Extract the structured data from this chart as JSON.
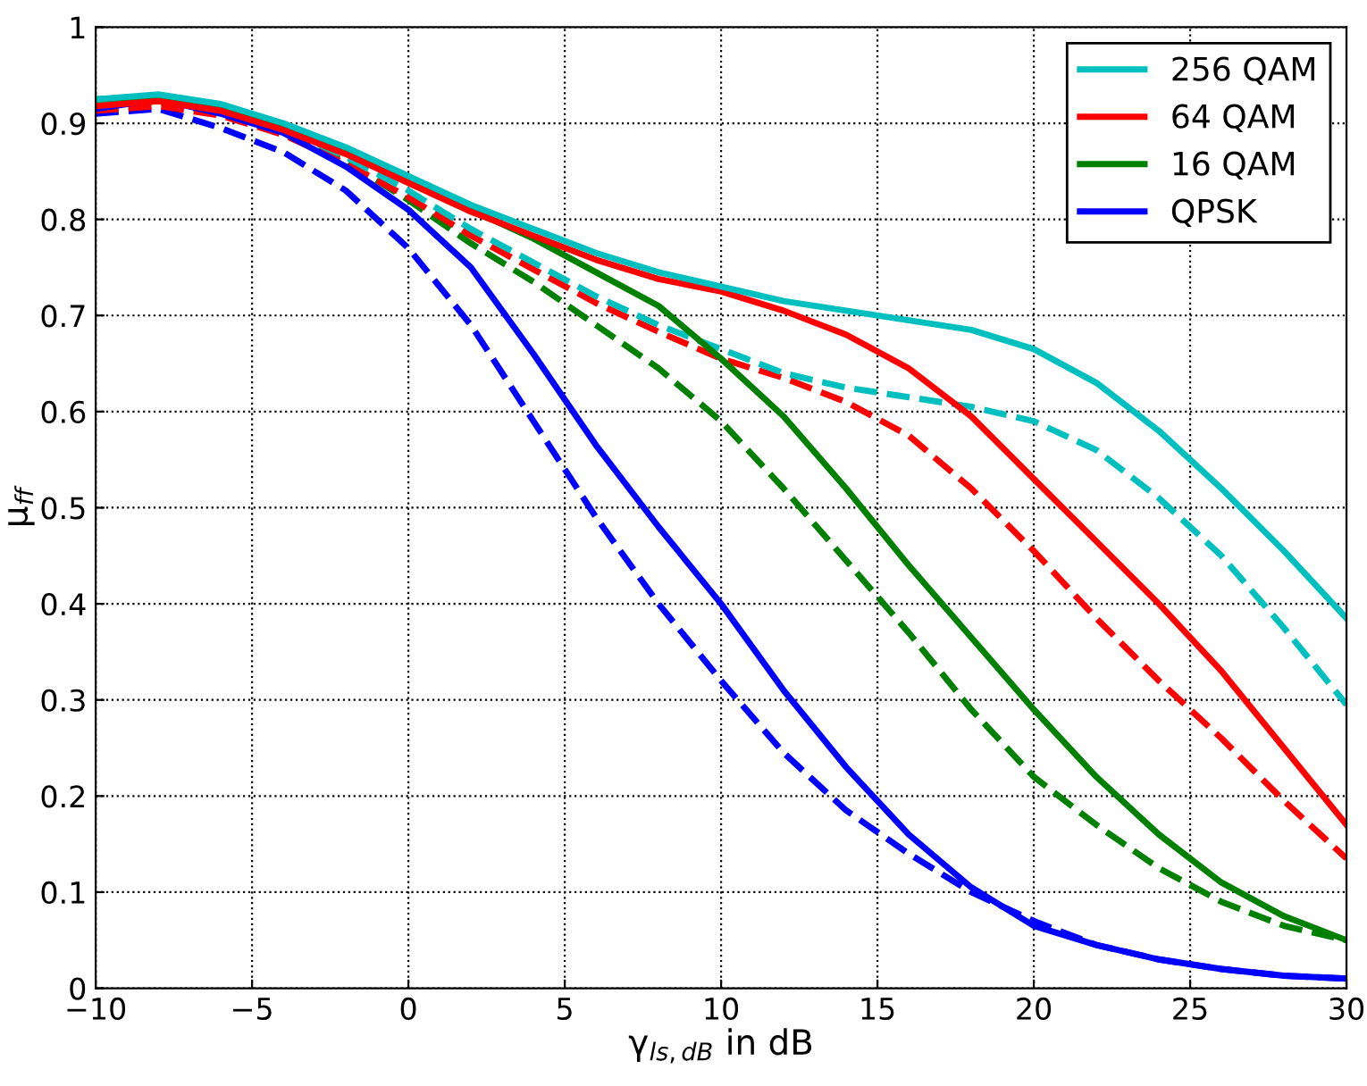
{
  "chart_data": {
    "type": "line",
    "xlabel": "γ$_{ls,dB}$ in dB",
    "ylabel": "μ$_{ff}$",
    "x": [
      -10,
      -8,
      -6,
      -4,
      -2,
      0,
      2,
      4,
      6,
      8,
      10,
      12,
      14,
      16,
      18,
      20,
      22,
      24,
      26,
      28,
      30
    ],
    "xlim": [
      -10,
      30
    ],
    "xticks": [
      {
        "value": -10,
        "label": "−10"
      },
      {
        "value": -5,
        "label": "−5"
      },
      0,
      5,
      10,
      15,
      20,
      25,
      30
    ],
    "ylim": [
      0,
      1
    ],
    "yticks": [
      0,
      0.1,
      0.2,
      0.3,
      0.4,
      0.5,
      0.6,
      0.7,
      0.8,
      0.9,
      1
    ],
    "grid": true,
    "legend": "top right",
    "marker": "none",
    "series": [
      {
        "name": "256 QAM",
        "color": "#00bfbf",
        "line_style": "solid",
        "values": [
          0.925,
          0.93,
          0.92,
          0.9,
          0.875,
          0.845,
          0.815,
          0.79,
          0.765,
          0.745,
          0.73,
          0.715,
          0.705,
          0.695,
          0.685,
          0.665,
          0.63,
          0.58,
          0.52,
          0.455,
          0.385
        ]
      },
      {
        "name": "64 QAM",
        "color": "#ff0000",
        "line_style": "solid",
        "values": [
          0.918,
          0.923,
          0.913,
          0.893,
          0.868,
          0.838,
          0.808,
          0.783,
          0.758,
          0.738,
          0.725,
          0.705,
          0.68,
          0.645,
          0.595,
          0.53,
          0.465,
          0.4,
          0.33,
          0.25,
          0.17
        ]
      },
      {
        "name": "16 QAM",
        "color": "#008000",
        "line_style": "solid",
        "values": [
          0.925,
          0.928,
          0.915,
          0.895,
          0.87,
          0.84,
          0.81,
          0.78,
          0.745,
          0.71,
          0.655,
          0.595,
          0.52,
          0.44,
          0.365,
          0.29,
          0.22,
          0.16,
          0.11,
          0.075,
          0.05
        ]
      },
      {
        "name": "QPSK",
        "color": "#0000ff",
        "line_style": "solid",
        "values": [
          0.915,
          0.925,
          0.91,
          0.89,
          0.855,
          0.81,
          0.75,
          0.66,
          0.565,
          0.48,
          0.4,
          0.31,
          0.23,
          0.16,
          0.105,
          0.065,
          0.045,
          0.03,
          0.02,
          0.013,
          0.01
        ]
      },
      {
        "color": "#00bfbf",
        "line_style": "dashed",
        "values": [
          0.92,
          0.925,
          0.915,
          0.895,
          0.865,
          0.83,
          0.79,
          0.755,
          0.72,
          0.69,
          0.665,
          0.64,
          0.625,
          0.615,
          0.605,
          0.59,
          0.56,
          0.51,
          0.45,
          0.375,
          0.295
        ]
      },
      {
        "color": "#ff0000",
        "line_style": "dashed",
        "values": [
          0.913,
          0.918,
          0.908,
          0.888,
          0.858,
          0.823,
          0.783,
          0.748,
          0.713,
          0.683,
          0.655,
          0.635,
          0.61,
          0.575,
          0.52,
          0.455,
          0.385,
          0.32,
          0.26,
          0.195,
          0.135
        ]
      },
      {
        "color": "#008000",
        "line_style": "dashed",
        "values": [
          0.92,
          0.922,
          0.91,
          0.89,
          0.86,
          0.82,
          0.775,
          0.735,
          0.69,
          0.645,
          0.59,
          0.52,
          0.445,
          0.37,
          0.29,
          0.22,
          0.17,
          0.125,
          0.09,
          0.065,
          0.05
        ]
      },
      {
        "color": "#0000ff",
        "line_style": "dashed",
        "values": [
          0.91,
          0.915,
          0.895,
          0.87,
          0.83,
          0.77,
          0.69,
          0.59,
          0.49,
          0.4,
          0.32,
          0.245,
          0.185,
          0.14,
          0.1,
          0.07,
          0.045,
          0.03,
          0.02,
          0.013,
          0.01
        ]
      }
    ]
  }
}
